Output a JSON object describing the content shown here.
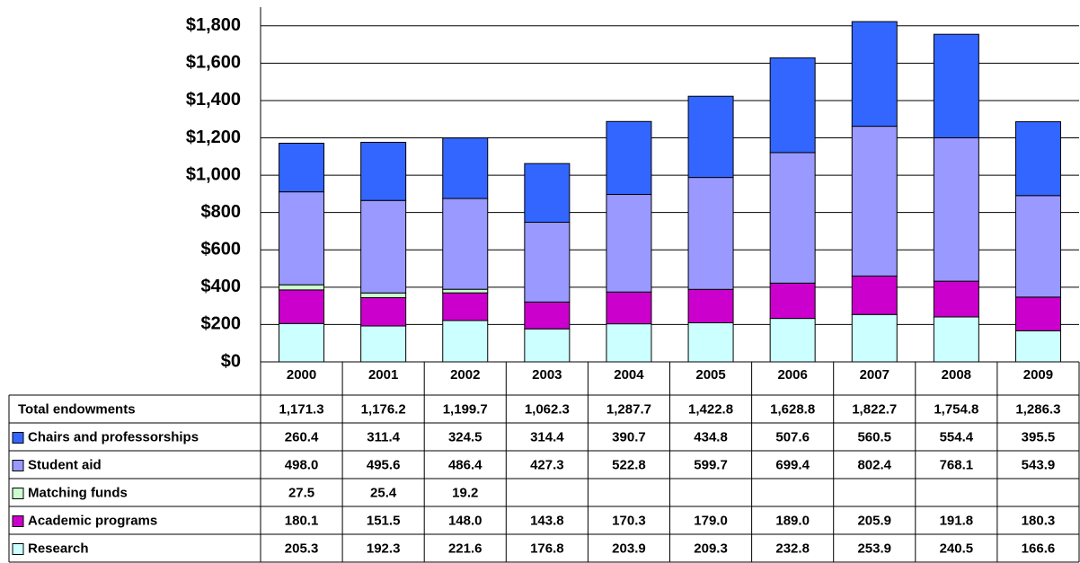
{
  "chart_data": {
    "type": "stacked-bar",
    "categories": [
      "2000",
      "2001",
      "2002",
      "2003",
      "2004",
      "2005",
      "2006",
      "2007",
      "2008",
      "2009"
    ],
    "ylim": [
      0,
      1900
    ],
    "yticks": [
      {
        "value": 0,
        "label": "$0"
      },
      {
        "value": 200,
        "label": "$200"
      },
      {
        "value": 400,
        "label": "$400"
      },
      {
        "value": 600,
        "label": "$600"
      },
      {
        "value": 800,
        "label": "$800"
      },
      {
        "value": 1000,
        "label": "$1,000"
      },
      {
        "value": 1200,
        "label": "$1,200"
      },
      {
        "value": 1400,
        "label": "$1,400"
      },
      {
        "value": 1600,
        "label": "$1,600"
      },
      {
        "value": 1800,
        "label": "$1,800"
      }
    ],
    "grid": true,
    "total": {
      "name": "Total endowments",
      "values": [
        1171.3,
        1176.2,
        1199.7,
        1062.3,
        1287.7,
        1422.8,
        1628.8,
        1822.7,
        1754.8,
        1286.3
      ],
      "value_labels": [
        "1,171.3",
        "1,176.2",
        "1,199.7",
        "1,062.3",
        "1,287.7",
        "1,422.8",
        "1,628.8",
        "1,822.7",
        "1,754.8",
        "1,286.3"
      ]
    },
    "series": [
      {
        "name": "Research",
        "color": "#ccffff",
        "values": [
          205.3,
          192.3,
          221.6,
          176.8,
          203.9,
          209.3,
          232.8,
          253.9,
          240.5,
          166.6
        ],
        "value_labels": [
          "205.3",
          "192.3",
          "221.6",
          "176.8",
          "203.9",
          "209.3",
          "232.8",
          "253.9",
          "240.5",
          "166.6"
        ]
      },
      {
        "name": "Academic programs",
        "color": "#cc00cc",
        "values": [
          180.1,
          151.5,
          148.0,
          143.8,
          170.3,
          179.0,
          189.0,
          205.9,
          191.8,
          180.3
        ],
        "value_labels": [
          "180.1",
          "151.5",
          "148.0",
          "143.8",
          "170.3",
          "179.0",
          "189.0",
          "205.9",
          "191.8",
          "180.3"
        ]
      },
      {
        "name": "Matching funds",
        "color": "#ccffcc",
        "values": [
          27.5,
          25.4,
          19.2,
          null,
          null,
          null,
          null,
          null,
          null,
          null
        ],
        "value_labels": [
          "27.5",
          "25.4",
          "19.2",
          null,
          null,
          null,
          null,
          null,
          null,
          null
        ]
      },
      {
        "name": "Student aid",
        "color": "#9999ff",
        "values": [
          498.0,
          495.6,
          486.4,
          427.3,
          522.8,
          599.7,
          699.4,
          802.4,
          768.1,
          543.9
        ],
        "value_labels": [
          "498.0",
          "495.6",
          "486.4",
          "427.3",
          "522.8",
          "599.7",
          "699.4",
          "802.4",
          "768.1",
          "543.9"
        ]
      },
      {
        "name": "Chairs and professorships",
        "color": "#3366ff",
        "values": [
          260.4,
          311.4,
          324.5,
          314.4,
          390.7,
          434.8,
          507.6,
          560.5,
          554.4,
          395.5
        ],
        "value_labels": [
          "260.4",
          "311.4",
          "324.5",
          "314.4",
          "390.7",
          "434.8",
          "507.6",
          "560.5",
          "554.4",
          "395.5"
        ]
      }
    ]
  }
}
